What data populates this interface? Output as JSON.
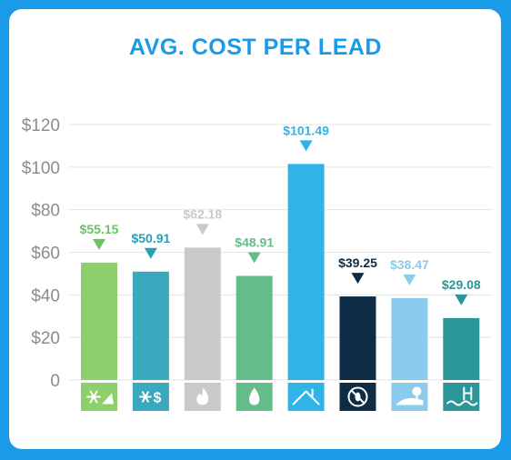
{
  "title": "AVG. COST PER LEAD",
  "colors": {
    "background": "#1a9be8",
    "title": "#1a9be8",
    "grid": "#e3e3e3",
    "tick": "#8c8c8c"
  },
  "chart_data": {
    "type": "bar",
    "title": "AVG. COST PER LEAD",
    "xlabel": "",
    "ylabel": "",
    "ylim": [
      0,
      120
    ],
    "yticks": [
      0,
      20,
      40,
      60,
      80,
      100,
      120
    ],
    "ytick_labels": [
      "0",
      "$20",
      "$40",
      "$60",
      "$80",
      "$100",
      "$120"
    ],
    "grid": true,
    "categories": [
      "snowflake-plow",
      "snowflake-dollar",
      "flame",
      "water-drop",
      "house-roof",
      "pest-control",
      "landscaping",
      "pool"
    ],
    "values": [
      55.15,
      50.91,
      62.18,
      48.91,
      101.49,
      39.25,
      38.47,
      29.08
    ],
    "labels": [
      "$55.15",
      "$50.91",
      "$62.18",
      "$48.91",
      "$101.49",
      "$39.25",
      "$38.47",
      "$29.08"
    ],
    "colors": [
      "#8dcf6c",
      "#3aa9bd",
      "#c8c9cb",
      "#64bd88",
      "#30b3e7",
      "#0e2c45",
      "#8bcbee",
      "#2a9699"
    ],
    "label_colors": [
      "#6cc265",
      "#2a9fb8",
      "#c8c9cb",
      "#64bd88",
      "#30b3e7",
      "#0e2c45",
      "#8bcbee",
      "#2a9699"
    ],
    "icons": [
      "snowflake-plow-icon",
      "snowflake-dollar-icon",
      "flame-icon",
      "water-drop-icon",
      "house-roof-icon",
      "pest-control-icon",
      "landscaping-icon",
      "pool-icon"
    ]
  }
}
